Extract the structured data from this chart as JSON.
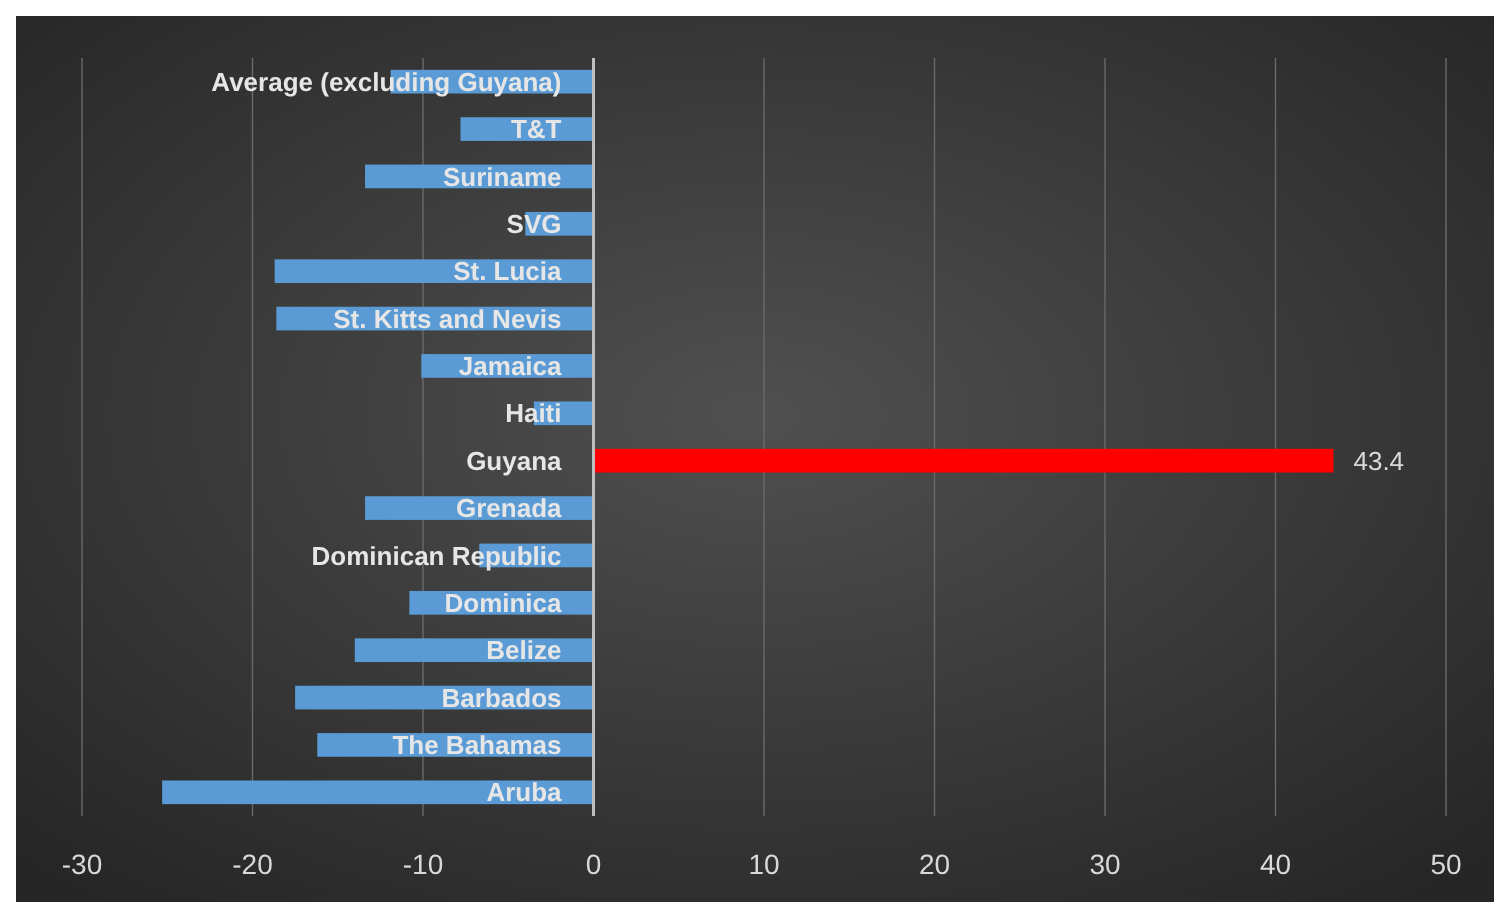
{
  "chart_data": {
    "type": "bar",
    "orientation": "horizontal",
    "categories": [
      "Average (excluding Guyana)",
      "T&T",
      "Suriname",
      "SVG",
      "St. Lucia",
      "St. Kitts and Nevis",
      "Jamaica",
      "Haiti",
      "Guyana",
      "Grenada",
      "Dominican Republic",
      "Dominica",
      "Belize",
      "Barbados",
      "The Bahamas",
      "Aruba"
    ],
    "values": [
      -11.9,
      -7.8,
      -13.4,
      -4.0,
      -18.7,
      -18.6,
      -10.1,
      -3.5,
      43.4,
      -13.4,
      -6.7,
      -10.8,
      -14.0,
      -17.5,
      -16.2,
      -25.3
    ],
    "colors": [
      "#5b9bd5",
      "#5b9bd5",
      "#5b9bd5",
      "#5b9bd5",
      "#5b9bd5",
      "#5b9bd5",
      "#5b9bd5",
      "#5b9bd5",
      "#ff0000",
      "#5b9bd5",
      "#5b9bd5",
      "#5b9bd5",
      "#5b9bd5",
      "#5b9bd5",
      "#5b9bd5",
      "#5b9bd5"
    ],
    "value_labels": [
      null,
      null,
      null,
      null,
      null,
      null,
      null,
      null,
      "43.4",
      null,
      null,
      null,
      null,
      null,
      null,
      null
    ],
    "xlim": [
      -30,
      50
    ],
    "xticks": [
      -30,
      -20,
      -10,
      0,
      10,
      20,
      30,
      40,
      50
    ],
    "grid": "x"
  }
}
